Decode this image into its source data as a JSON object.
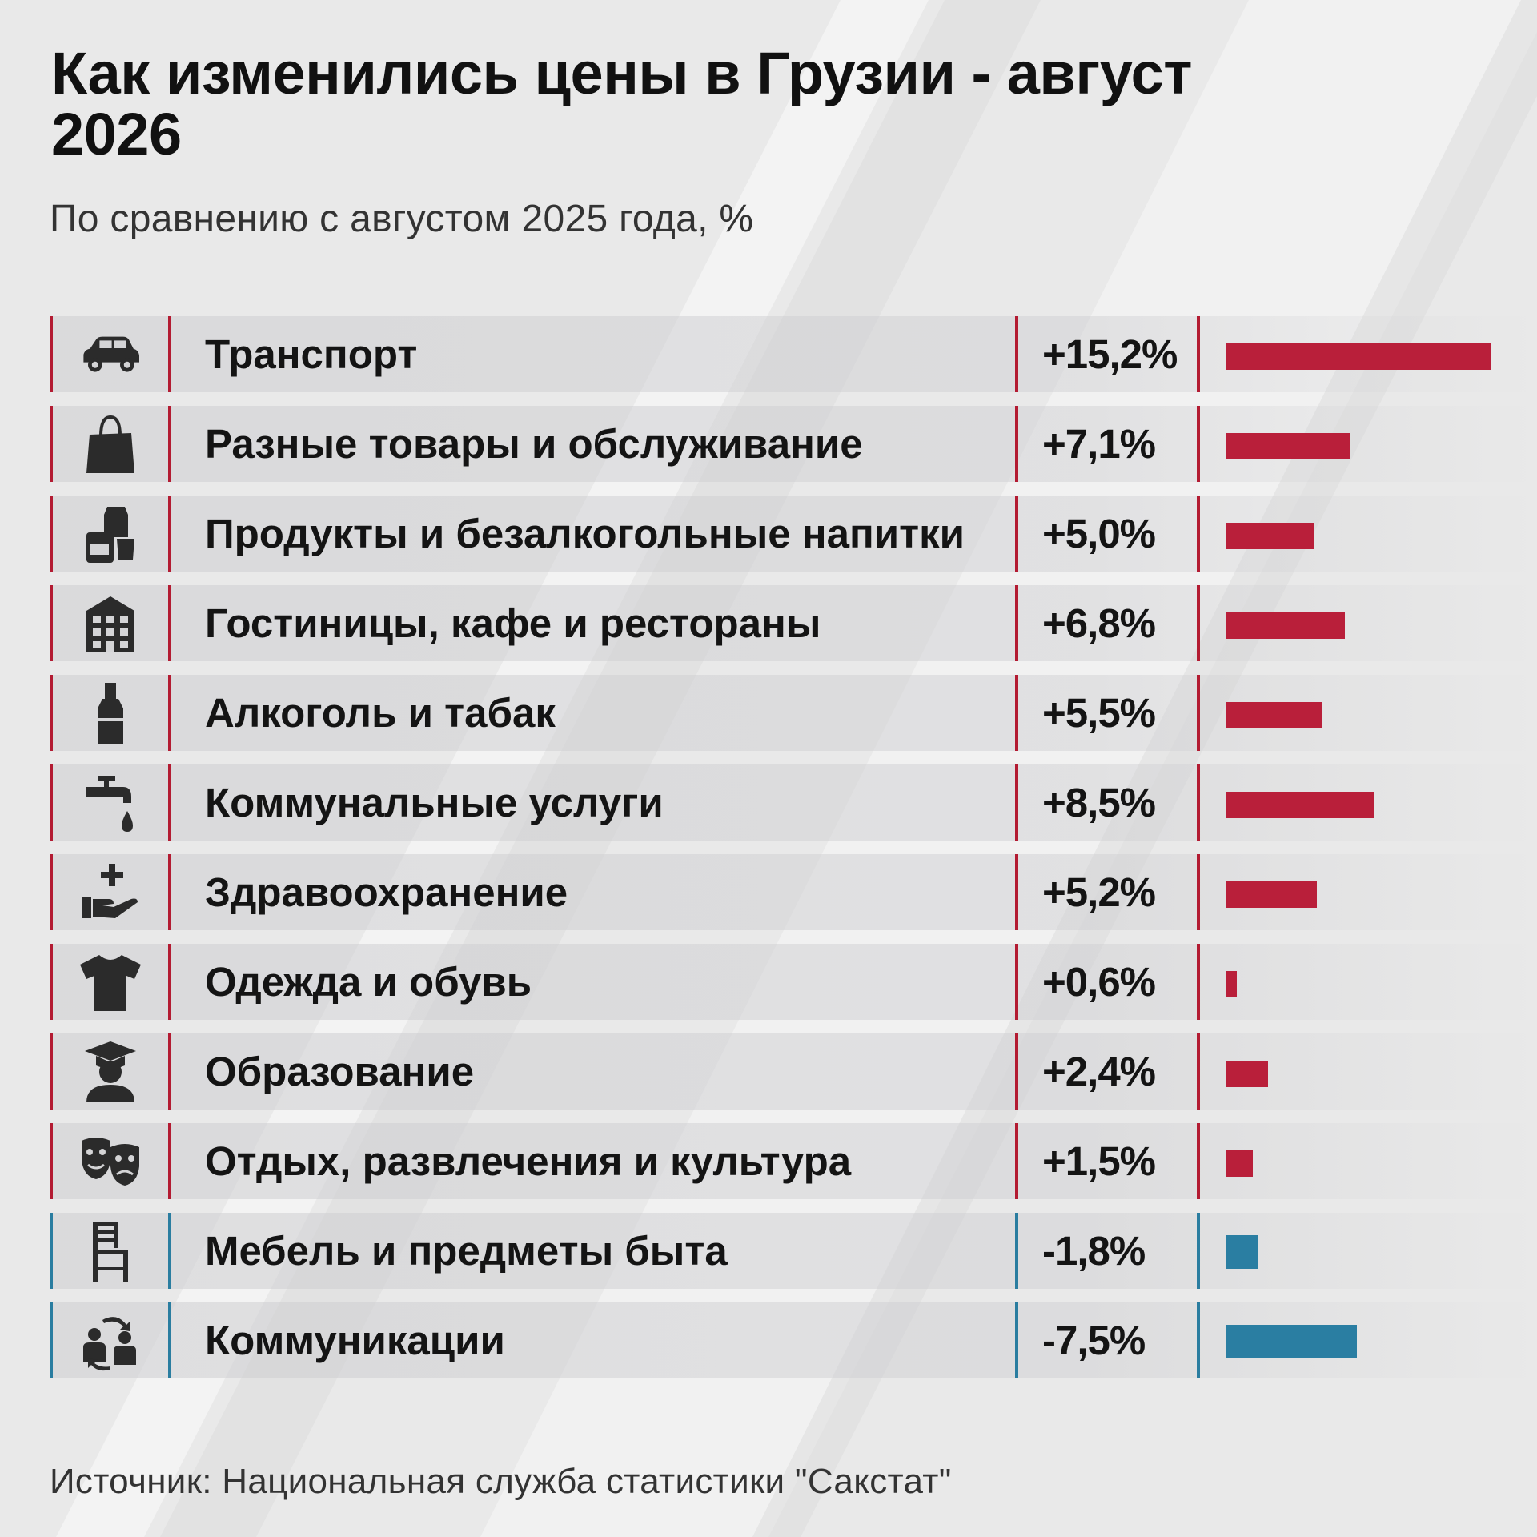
{
  "title": "Как изменились цены в Грузии - август 2026",
  "subtitle": "По сравнению с августом 2025 года, %",
  "source": "Источник: Национальная служба статистики \"Сакстат\"",
  "colors": {
    "increase": "#b91f3a",
    "decrease": "#2a7ea2",
    "background": "#e9e9e9"
  },
  "chart_data": {
    "type": "bar",
    "orientation": "horizontal",
    "title": "Как изменились цены в Грузии - август 2026",
    "subtitle": "По сравнению с августом 2025 года, %",
    "bar_length": "absolute value",
    "categories": [
      "Транспорт",
      "Разные товары и обслуживание",
      "Продукты и безалкогольные напитки",
      "Гостиницы, кафе и рестораны",
      "Алкоголь и табак",
      "Коммунальные услуги",
      "Здравоохранение",
      "Одежда и обувь",
      "Образование",
      "Отдых, развлечения и культура",
      "Мебель и предметы быта",
      "Коммуникации"
    ],
    "values": [
      15.2,
      7.1,
      5.0,
      6.8,
      5.5,
      8.5,
      5.2,
      0.6,
      2.4,
      1.5,
      -1.8,
      -7.5
    ],
    "value_labels": [
      "+15,2%",
      "+7,1%",
      "+5,0%",
      "+6,8%",
      "+5,5%",
      "+8,5%",
      "+5,2%",
      "+0,6%",
      "+2,4%",
      "+1,5%",
      "-1,8%",
      "-7,5%"
    ],
    "icons": [
      "car-icon",
      "shopping-bag-icon",
      "groceries-icon",
      "building-icon",
      "bottle-icon",
      "faucet-icon",
      "healthcare-hand-icon",
      "tshirt-icon",
      "graduate-icon",
      "theater-masks-icon",
      "chair-icon",
      "people-exchange-icon"
    ]
  }
}
